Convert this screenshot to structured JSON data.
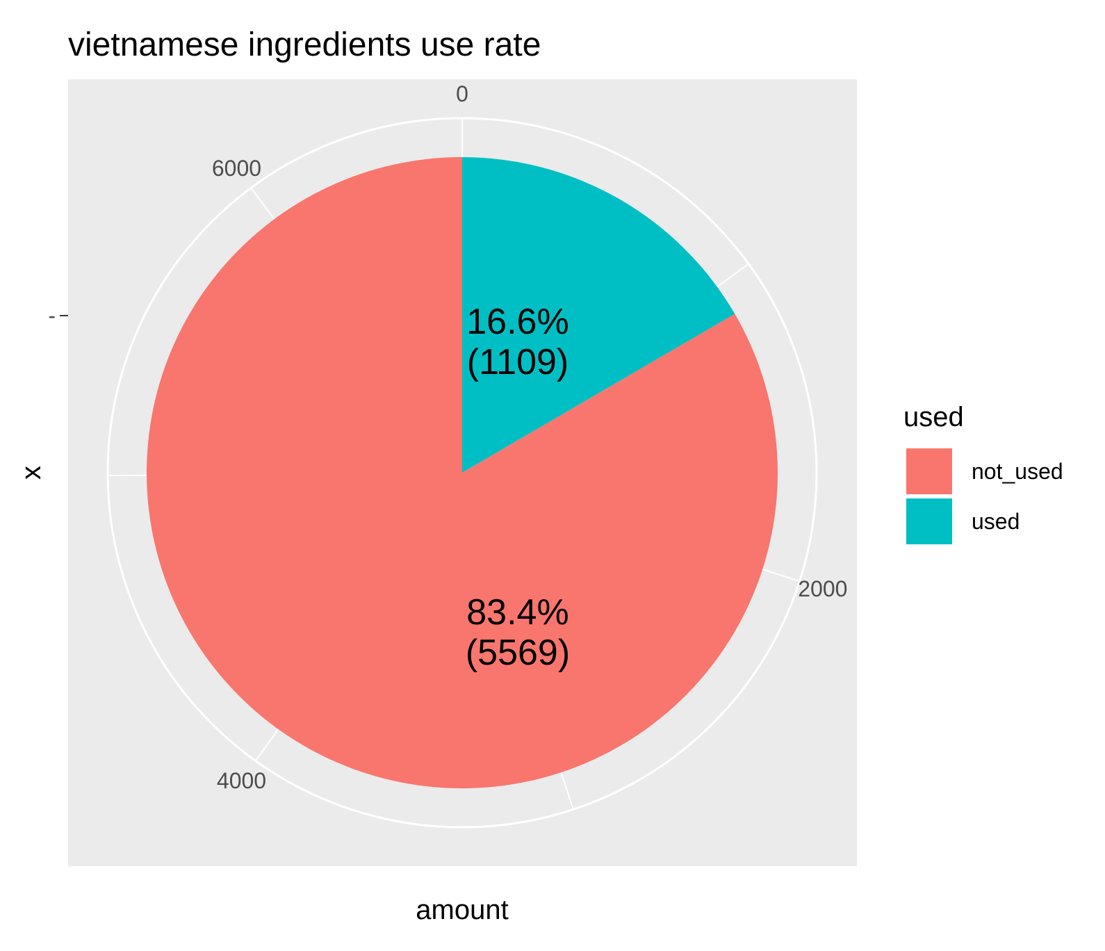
{
  "chart_data": {
    "type": "pie",
    "title": "vietnamese ingredients use rate",
    "xlabel": "amount",
    "ylabel": "x",
    "y_tick_label": "-",
    "radial_ticks": [
      0,
      2000,
      4000,
      6000
    ],
    "radial_tick_labels": [
      "0",
      "2000",
      "4000",
      "6000"
    ],
    "total": 6678,
    "grid": true,
    "legend": {
      "title": "used",
      "position": "right",
      "entries": [
        "not_used",
        "used"
      ]
    },
    "slices": [
      {
        "name": "not_used",
        "value": 5569,
        "percent_label": "83.4%",
        "count_label": "(5569)",
        "color": "#F8766D"
      },
      {
        "name": "used",
        "value": 1109,
        "percent_label": "16.6%",
        "count_label": "(1109)",
        "color": "#00BFC4"
      }
    ],
    "panel_background": "#EBEBEB",
    "grid_color": "#FFFFFF"
  }
}
